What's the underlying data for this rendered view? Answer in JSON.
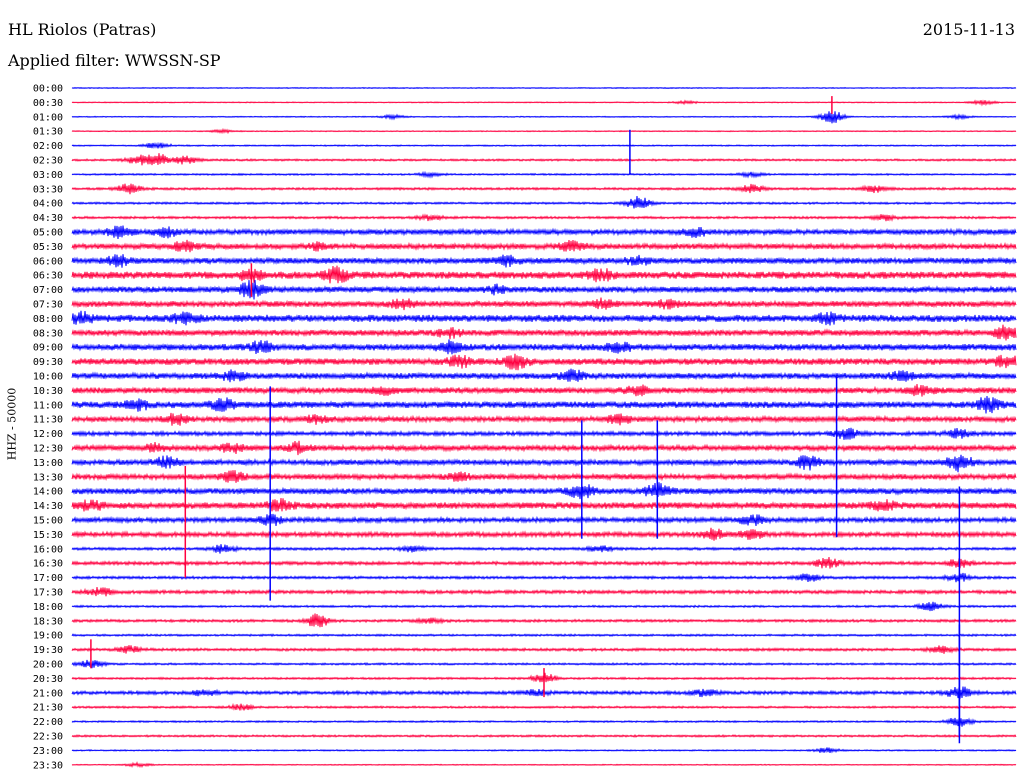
{
  "header": {
    "station": "HL Riolos (Patras)",
    "date": "2015-11-13",
    "filter": "Applied filter: WWSSN-SP"
  },
  "side_label": "HHZ - 50000",
  "colors": {
    "even_rows": "#0000ff",
    "odd_rows": "#ff0040"
  },
  "chart_data": {
    "type": "line",
    "title": "HL Riolos (Patras)",
    "ylabel": "HHZ - 50000",
    "row_interval_minutes": 30,
    "series_colors": [
      "#0000ff",
      "#ff0040"
    ],
    "rows": [
      {
        "label": "00:00",
        "noise": 0.15,
        "events": []
      },
      {
        "label": "00:30",
        "noise": 0.15,
        "events": [
          {
            "t": 0.65,
            "a": 0.4
          },
          {
            "t": 0.965,
            "a": 0.6
          }
        ]
      },
      {
        "label": "01:00",
        "noise": 0.15,
        "events": [
          {
            "t": 0.34,
            "a": 0.5
          },
          {
            "t": 0.805,
            "a": 2.0
          },
          {
            "t": 0.94,
            "a": 0.5
          }
        ]
      },
      {
        "label": "01:30",
        "noise": 0.15,
        "events": [
          {
            "t": 0.16,
            "a": 0.4
          }
        ]
      },
      {
        "label": "02:00",
        "noise": 0.2,
        "events": [
          {
            "t": 0.09,
            "a": 1.0
          }
        ]
      },
      {
        "label": "02:30",
        "noise": 0.3,
        "events": [
          {
            "t": 0.07,
            "a": 1.2
          },
          {
            "t": 0.09,
            "a": 2.0
          },
          {
            "t": 0.12,
            "a": 1.2
          }
        ]
      },
      {
        "label": "03:00",
        "noise": 0.25,
        "events": [
          {
            "t": 0.38,
            "a": 0.5
          },
          {
            "t": 0.72,
            "a": 0.6
          }
        ]
      },
      {
        "label": "03:30",
        "noise": 0.35,
        "events": [
          {
            "t": 0.06,
            "a": 1.5
          },
          {
            "t": 0.72,
            "a": 1.2
          },
          {
            "t": 0.85,
            "a": 1.0
          }
        ]
      },
      {
        "label": "04:00",
        "noise": 0.3,
        "events": [
          {
            "t": 0.6,
            "a": 2.0
          }
        ]
      },
      {
        "label": "04:30",
        "noise": 0.35,
        "events": [
          {
            "t": 0.38,
            "a": 0.8
          },
          {
            "t": 0.86,
            "a": 0.8
          }
        ]
      },
      {
        "label": "05:00",
        "noise": 0.8,
        "events": [
          {
            "t": 0.05,
            "a": 1.5
          },
          {
            "t": 0.1,
            "a": 1.2
          },
          {
            "t": 0.66,
            "a": 1.2
          }
        ]
      },
      {
        "label": "05:30",
        "noise": 0.8,
        "events": [
          {
            "t": 0.12,
            "a": 1.5
          },
          {
            "t": 0.26,
            "a": 1.0
          },
          {
            "t": 0.53,
            "a": 1.5
          }
        ]
      },
      {
        "label": "06:00",
        "noise": 0.9,
        "events": [
          {
            "t": 0.05,
            "a": 1.5
          },
          {
            "t": 0.46,
            "a": 1.2
          },
          {
            "t": 0.6,
            "a": 1.0
          }
        ]
      },
      {
        "label": "06:30",
        "noise": 1.1,
        "events": [
          {
            "t": 0.19,
            "a": 1.5
          },
          {
            "t": 0.28,
            "a": 2.0
          },
          {
            "t": 0.56,
            "a": 1.5
          }
        ]
      },
      {
        "label": "07:00",
        "noise": 0.9,
        "events": [
          {
            "t": 0.19,
            "a": 2.5
          },
          {
            "t": 0.45,
            "a": 1.0
          }
        ]
      },
      {
        "label": "07:30",
        "noise": 0.9,
        "events": [
          {
            "t": 0.35,
            "a": 1.2
          },
          {
            "t": 0.56,
            "a": 1.2
          },
          {
            "t": 0.63,
            "a": 1.0
          }
        ]
      },
      {
        "label": "08:00",
        "noise": 1.1,
        "events": [
          {
            "t": 0.01,
            "a": 1.5
          },
          {
            "t": 0.12,
            "a": 1.5
          },
          {
            "t": 0.8,
            "a": 1.2
          }
        ]
      },
      {
        "label": "08:30",
        "noise": 0.9,
        "events": [
          {
            "t": 0.4,
            "a": 1.2
          },
          {
            "t": 0.99,
            "a": 2.0
          }
        ]
      },
      {
        "label": "09:00",
        "noise": 1.0,
        "events": [
          {
            "t": 0.2,
            "a": 1.5
          },
          {
            "t": 0.4,
            "a": 1.5
          },
          {
            "t": 0.58,
            "a": 1.2
          }
        ]
      },
      {
        "label": "09:30",
        "noise": 1.0,
        "events": [
          {
            "t": 0.41,
            "a": 1.5
          },
          {
            "t": 0.47,
            "a": 2.0
          },
          {
            "t": 0.99,
            "a": 1.5
          }
        ]
      },
      {
        "label": "10:00",
        "noise": 0.9,
        "events": [
          {
            "t": 0.17,
            "a": 1.2
          },
          {
            "t": 0.53,
            "a": 1.5
          },
          {
            "t": 0.88,
            "a": 1.2
          }
        ]
      },
      {
        "label": "10:30",
        "noise": 0.9,
        "events": [
          {
            "t": 0.33,
            "a": 1.0
          },
          {
            "t": 0.6,
            "a": 1.2
          },
          {
            "t": 0.9,
            "a": 1.5
          }
        ]
      },
      {
        "label": "11:00",
        "noise": 1.0,
        "events": [
          {
            "t": 0.07,
            "a": 1.2
          },
          {
            "t": 0.16,
            "a": 1.5
          },
          {
            "t": 0.97,
            "a": 2.0
          }
        ]
      },
      {
        "label": "11:30",
        "noise": 0.8,
        "events": [
          {
            "t": 0.11,
            "a": 1.5
          },
          {
            "t": 0.26,
            "a": 1.2
          },
          {
            "t": 0.58,
            "a": 1.2
          }
        ]
      },
      {
        "label": "12:00",
        "noise": 0.6,
        "events": [
          {
            "t": 0.82,
            "a": 1.5
          },
          {
            "t": 0.94,
            "a": 1.2
          }
        ]
      },
      {
        "label": "12:30",
        "noise": 0.8,
        "events": [
          {
            "t": 0.09,
            "a": 1.2
          },
          {
            "t": 0.17,
            "a": 1.2
          },
          {
            "t": 0.24,
            "a": 1.5
          }
        ]
      },
      {
        "label": "13:00",
        "noise": 0.8,
        "events": [
          {
            "t": 0.1,
            "a": 1.5
          },
          {
            "t": 0.78,
            "a": 2.0
          },
          {
            "t": 0.94,
            "a": 2.5
          }
        ]
      },
      {
        "label": "13:30",
        "noise": 0.8,
        "events": [
          {
            "t": 0.17,
            "a": 1.5
          },
          {
            "t": 0.41,
            "a": 1.0
          }
        ]
      },
      {
        "label": "14:00",
        "noise": 0.9,
        "events": [
          {
            "t": 0.54,
            "a": 2.0
          },
          {
            "t": 0.62,
            "a": 2.0
          }
        ]
      },
      {
        "label": "14:30",
        "noise": 1.0,
        "events": [
          {
            "t": 0.02,
            "a": 1.2
          },
          {
            "t": 0.22,
            "a": 1.5
          },
          {
            "t": 0.86,
            "a": 1.2
          }
        ]
      },
      {
        "label": "15:00",
        "noise": 0.7,
        "events": [
          {
            "t": 0.21,
            "a": 1.5
          },
          {
            "t": 0.72,
            "a": 1.5
          }
        ]
      },
      {
        "label": "15:30",
        "noise": 0.7,
        "events": [
          {
            "t": 0.68,
            "a": 1.5
          },
          {
            "t": 0.72,
            "a": 1.2
          }
        ]
      },
      {
        "label": "16:00",
        "noise": 0.4,
        "events": [
          {
            "t": 0.16,
            "a": 1.2
          },
          {
            "t": 0.36,
            "a": 0.8
          },
          {
            "t": 0.56,
            "a": 0.8
          }
        ]
      },
      {
        "label": "16:30",
        "noise": 0.5,
        "events": [
          {
            "t": 0.8,
            "a": 1.5
          },
          {
            "t": 0.94,
            "a": 1.2
          }
        ]
      },
      {
        "label": "17:00",
        "noise": 0.4,
        "events": [
          {
            "t": 0.78,
            "a": 1.2
          },
          {
            "t": 0.94,
            "a": 1.2
          }
        ]
      },
      {
        "label": "17:30",
        "noise": 0.5,
        "events": [
          {
            "t": 0.03,
            "a": 1.2
          }
        ]
      },
      {
        "label": "18:00",
        "noise": 0.3,
        "events": [
          {
            "t": 0.91,
            "a": 1.2
          }
        ]
      },
      {
        "label": "18:30",
        "noise": 0.4,
        "events": [
          {
            "t": 0.26,
            "a": 2.0
          },
          {
            "t": 0.38,
            "a": 0.6
          }
        ]
      },
      {
        "label": "19:00",
        "noise": 0.3,
        "events": []
      },
      {
        "label": "19:30",
        "noise": 0.4,
        "events": [
          {
            "t": 0.06,
            "a": 1.0
          },
          {
            "t": 0.92,
            "a": 1.0
          }
        ]
      },
      {
        "label": "20:00",
        "noise": 0.3,
        "events": [
          {
            "t": 0.02,
            "a": 1.2
          }
        ]
      },
      {
        "label": "20:30",
        "noise": 0.3,
        "events": [
          {
            "t": 0.5,
            "a": 1.5
          }
        ]
      },
      {
        "label": "21:00",
        "noise": 0.5,
        "events": [
          {
            "t": 0.14,
            "a": 0.8
          },
          {
            "t": 0.49,
            "a": 0.8
          },
          {
            "t": 0.67,
            "a": 1.0
          },
          {
            "t": 0.94,
            "a": 2.0
          }
        ]
      },
      {
        "label": "21:30",
        "noise": 0.3,
        "events": [
          {
            "t": 0.18,
            "a": 0.8
          }
        ]
      },
      {
        "label": "22:00",
        "noise": 0.25,
        "events": [
          {
            "t": 0.94,
            "a": 1.5
          }
        ]
      },
      {
        "label": "22:30",
        "noise": 0.3,
        "events": []
      },
      {
        "label": "23:00",
        "noise": 0.2,
        "events": [
          {
            "t": 0.8,
            "a": 0.8
          }
        ]
      },
      {
        "label": "23:30",
        "noise": 0.15,
        "events": [
          {
            "t": 0.07,
            "a": 0.5
          }
        ]
      }
    ],
    "spikes": [
      {
        "row": 1,
        "t": 0.805,
        "reach": 0.8
      },
      {
        "row": 4,
        "t": 0.591,
        "reach": 2.0
      },
      {
        "row": 13,
        "t": 0.19,
        "reach": 1.5
      },
      {
        "row": 26,
        "t": 0.21,
        "reach": 9.6
      },
      {
        "row": 26,
        "t": 0.54,
        "reach": 5.3
      },
      {
        "row": 26,
        "t": 0.62,
        "reach": 5.3
      },
      {
        "row": 24,
        "t": 0.81,
        "reach": 7.2
      },
      {
        "row": 29,
        "t": 0.12,
        "reach": 5.0
      },
      {
        "row": 34,
        "t": 0.94,
        "reach": 11.5
      },
      {
        "row": 39,
        "t": 0.02,
        "reach": 1.3
      },
      {
        "row": 41,
        "t": 0.5,
        "reach": 1.3
      },
      {
        "row": 40,
        "t": 0.94,
        "reach": 5.0
      }
    ]
  }
}
